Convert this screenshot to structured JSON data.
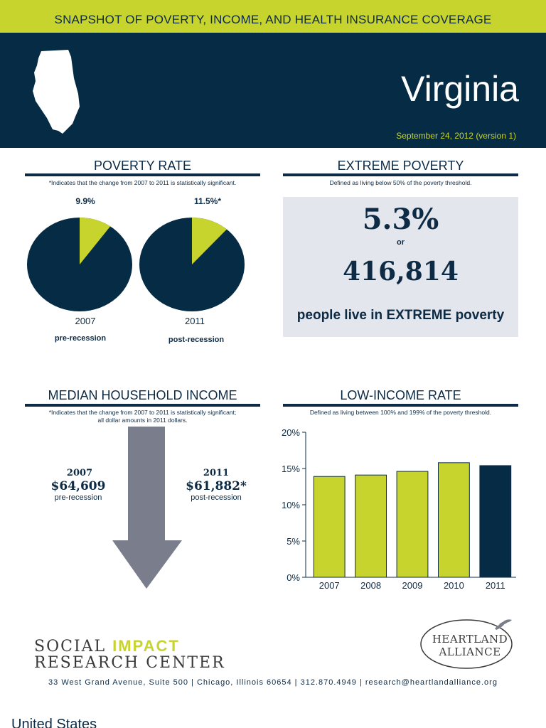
{
  "header": {
    "banner": "SNAPSHOT OF POVERTY, INCOME, AND HEALTH INSURANCE COVERAGE",
    "state": "Virginia",
    "date": "September 24, 2012 (version 1)"
  },
  "poverty_rate": {
    "title": "POVERTY RATE",
    "note": "*Indicates that the change from 2007 to 2011 is statistically significant.",
    "pies": [
      {
        "value_label": "9.9%",
        "value": 9.9,
        "year": "2007",
        "phase": "pre-recession"
      },
      {
        "value_label": "11.5%*",
        "value": 11.5,
        "year": "2011",
        "phase": "post-recession"
      }
    ]
  },
  "extreme_poverty": {
    "title": "EXTREME POVERTY",
    "note": "Defined as living below 50% of the poverty threshold.",
    "percent": "5.3%",
    "or": "or",
    "count": "416,814",
    "caption": "people live in EXTREME poverty"
  },
  "median_income": {
    "title": "MEDIAN HOUSEHOLD INCOME",
    "note_line1": "*Indicates that the change from 2007 to 2011 is statistically significant;",
    "note_line2": "all dollar amounts in 2011 dollars.",
    "left": {
      "year": "2007",
      "value": "$64,609",
      "phase": "pre-recession"
    },
    "right": {
      "year": "2011",
      "value": "$61,882*",
      "phase": "post-recession"
    }
  },
  "low_income": {
    "title": "LOW-INCOME RATE",
    "note": "Defined as living between 100% and 199% of the poverty threshold."
  },
  "chart_data": {
    "type": "bar",
    "categories": [
      "2007",
      "2008",
      "2009",
      "2010",
      "2011"
    ],
    "values": [
      13.9,
      14.1,
      14.6,
      15.8,
      15.4
    ],
    "ylim": [
      0,
      20
    ],
    "yticks": [
      "0%",
      "5%",
      "10%",
      "15%",
      "20%"
    ],
    "colors": [
      "#c8d42e",
      "#c8d42e",
      "#c8d42e",
      "#c8d42e",
      "#062b45"
    ],
    "title": "",
    "xlabel": "",
    "ylabel": ""
  },
  "footer": {
    "org_line1_a": "SOCIAL ",
    "org_line1_b": "IMPACT",
    "org_line2": "RESEARCH CENTER",
    "partner_line1": "HEARTLAND",
    "partner_line2": "ALLIANCE",
    "address": "33 West Grand Avenue, Suite 500 | Chicago, Illinois 60654 | 312.870.4949 | research@heartlandalliance.org"
  },
  "bottom_text": "United States",
  "colors": {
    "navy": "#062b45",
    "lime": "#c8d42e",
    "grey_box": "#e3e6ec",
    "arrow": "#7a7e8c"
  }
}
